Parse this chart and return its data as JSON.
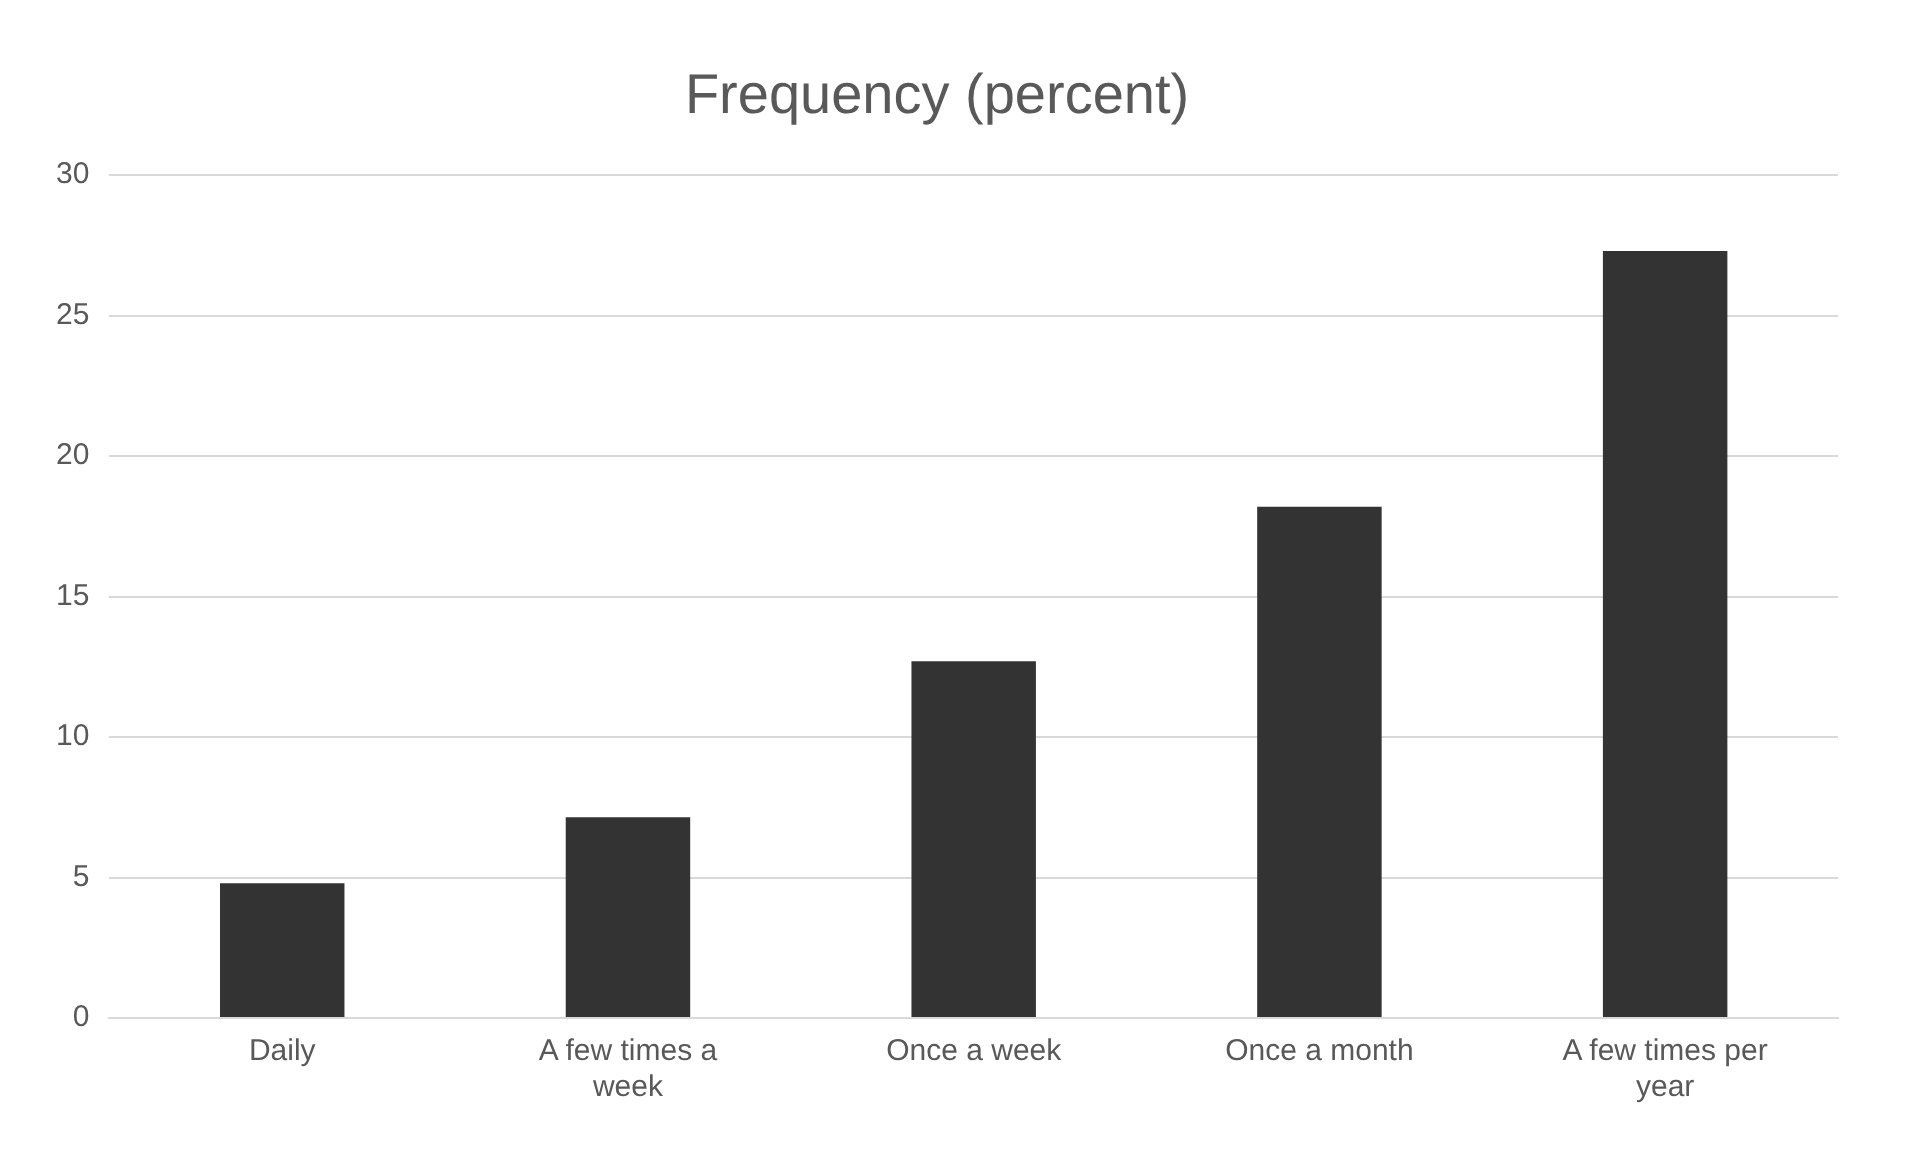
{
  "chart_data": {
    "type": "bar",
    "title": "Frequency (percent)",
    "categories": [
      "Daily",
      "A few times a week",
      "Once a week",
      "Once a month",
      "A few times per year"
    ],
    "values": [
      4.8,
      7.15,
      12.7,
      18.2,
      27.3
    ],
    "color": "#333333",
    "ylim": [
      0,
      30
    ],
    "yticks": [
      0,
      5,
      10,
      15,
      20,
      25,
      30
    ],
    "grid": "y",
    "legend": false
  }
}
